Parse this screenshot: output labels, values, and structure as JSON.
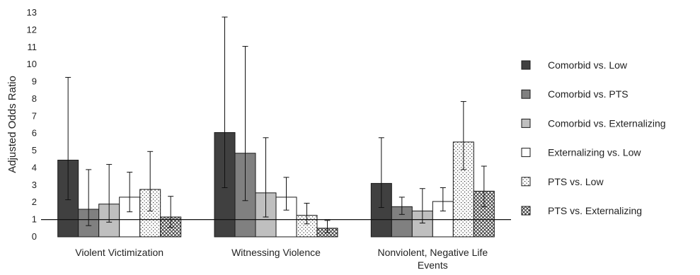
{
  "chart_data": {
    "type": "bar",
    "title": "",
    "xlabel": "",
    "ylabel": "Adjusted Odds Ratio",
    "ylim": [
      0,
      13
    ],
    "yticks": [
      0,
      1,
      2,
      3,
      4,
      5,
      6,
      7,
      8,
      9,
      10,
      11,
      12,
      13
    ],
    "reference_line": 1,
    "grid": false,
    "legend_position": "right",
    "categories": [
      [
        "Violent Victimization"
      ],
      [
        "Witnessing Violence"
      ],
      [
        "Nonviolent, Negative Life",
        "Events"
      ]
    ],
    "series": [
      {
        "name": "Comorbid vs. Low",
        "fill": "#404040",
        "pattern": "solid",
        "values": [
          4.45,
          6.05,
          3.1
        ],
        "ci_low": [
          2.15,
          2.85,
          1.7
        ],
        "ci_high": [
          9.25,
          12.75,
          5.75
        ]
      },
      {
        "name": "Comorbid vs. PTS",
        "fill": "#808080",
        "pattern": "solid",
        "values": [
          1.6,
          4.85,
          1.75
        ],
        "ci_low": [
          0.65,
          2.1,
          1.3
        ],
        "ci_high": [
          3.9,
          11.05,
          2.3
        ]
      },
      {
        "name": "Comorbid vs. Externalizing",
        "fill": "#bfbfbf",
        "pattern": "solid",
        "values": [
          1.9,
          2.55,
          1.5
        ],
        "ci_low": [
          0.85,
          1.15,
          0.8
        ],
        "ci_high": [
          4.2,
          5.75,
          2.8
        ]
      },
      {
        "name": "Externalizing vs. Low",
        "fill": "#ffffff",
        "pattern": "solid",
        "values": [
          2.3,
          2.3,
          2.05
        ],
        "ci_low": [
          1.45,
          1.55,
          1.5
        ],
        "ci_high": [
          3.75,
          3.45,
          2.85
        ]
      },
      {
        "name": "PTS vs. Low",
        "fill": "#ffffff",
        "pattern": "dots",
        "values": [
          2.75,
          1.25,
          5.5
        ],
        "ci_low": [
          1.5,
          0.75,
          3.9
        ],
        "ci_high": [
          4.95,
          1.95,
          7.85
        ]
      },
      {
        "name": "PTS vs. Externalizing",
        "fill": "#ffffff",
        "pattern": "crosshatch",
        "values": [
          1.15,
          0.5,
          2.65
        ],
        "ci_low": [
          0.55,
          0.25,
          1.75
        ],
        "ci_high": [
          2.35,
          0.95,
          4.1
        ]
      }
    ]
  }
}
